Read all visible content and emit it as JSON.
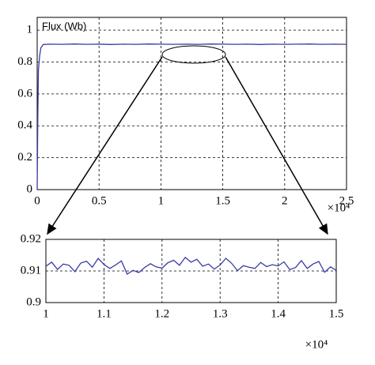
{
  "chart_data": [
    {
      "type": "line",
      "ylabel": "Flux (Wb)",
      "x_multiplier": "×10⁴",
      "x": [
        0,
        0.005,
        0.01,
        0.02,
        0.03,
        0.05,
        0.1,
        0.2,
        0.3,
        0.4,
        0.5,
        0.6,
        0.7,
        0.8,
        0.9,
        1,
        1.1,
        1.2,
        1.3,
        1.4,
        1.5,
        1.6,
        1.7,
        1.8,
        1.9,
        2,
        2.1,
        2.2,
        2.3,
        2.4,
        2.5
      ],
      "series": [
        {
          "color": "#3a3aa8",
          "values": [
            0,
            0.45,
            0.75,
            0.84,
            0.89,
            0.91,
            0.912,
            0.911,
            0.913,
            0.911,
            0.912,
            0.91,
            0.912,
            0.911,
            0.913,
            0.912,
            0.911,
            0.912,
            0.911,
            0.913,
            0.912,
            0.911,
            0.912,
            0.91,
            0.912,
            0.911,
            0.912,
            0.913,
            0.911,
            0.912,
            0.911
          ]
        }
      ],
      "xlim": [
        0,
        2.5
      ],
      "xticks": [
        0,
        0.5,
        1,
        1.5,
        2,
        2.5
      ],
      "ylim": [
        0,
        1.08
      ],
      "yticks": [
        0,
        0.2,
        0.4,
        0.6,
        0.8,
        1
      ],
      "grid": true
    },
    {
      "type": "line",
      "x_multiplier": "×10⁴",
      "x": [
        1,
        1.01,
        1.02,
        1.03,
        1.04,
        1.05,
        1.06,
        1.07,
        1.08,
        1.09,
        1.1,
        1.11,
        1.12,
        1.13,
        1.14,
        1.15,
        1.16,
        1.17,
        1.18,
        1.19,
        1.2,
        1.21,
        1.22,
        1.23,
        1.24,
        1.25,
        1.26,
        1.27,
        1.28,
        1.29,
        1.3,
        1.31,
        1.32,
        1.33,
        1.34,
        1.35,
        1.36,
        1.37,
        1.38,
        1.39,
        1.4,
        1.41,
        1.42,
        1.43,
        1.44,
        1.45,
        1.46,
        1.47,
        1.48,
        1.49,
        1.5
      ],
      "series": [
        {
          "color": "#3a3aa8",
          "values": [
            0.9115,
            0.9128,
            0.9105,
            0.9122,
            0.9118,
            0.9098,
            0.9125,
            0.9131,
            0.9112,
            0.914,
            0.9121,
            0.9108,
            0.9119,
            0.9132,
            0.909,
            0.9102,
            0.9095,
            0.9111,
            0.9123,
            0.9113,
            0.9109,
            0.9126,
            0.9134,
            0.9118,
            0.9143,
            0.9128,
            0.9137,
            0.9115,
            0.9122,
            0.9106,
            0.9119,
            0.914,
            0.9124,
            0.9101,
            0.9117,
            0.9112,
            0.9108,
            0.9127,
            0.9114,
            0.912,
            0.9116,
            0.9129,
            0.9104,
            0.9111,
            0.9133,
            0.9108,
            0.9122,
            0.913,
            0.9096,
            0.9113,
            0.9102
          ]
        }
      ],
      "xlim": [
        1,
        1.5
      ],
      "xticks": [
        1,
        1.1,
        1.2,
        1.3,
        1.4,
        1.5
      ],
      "ylim": [
        0.9,
        0.92
      ],
      "yticks": [
        0.9,
        0.91,
        0.92
      ],
      "grid": true
    }
  ]
}
